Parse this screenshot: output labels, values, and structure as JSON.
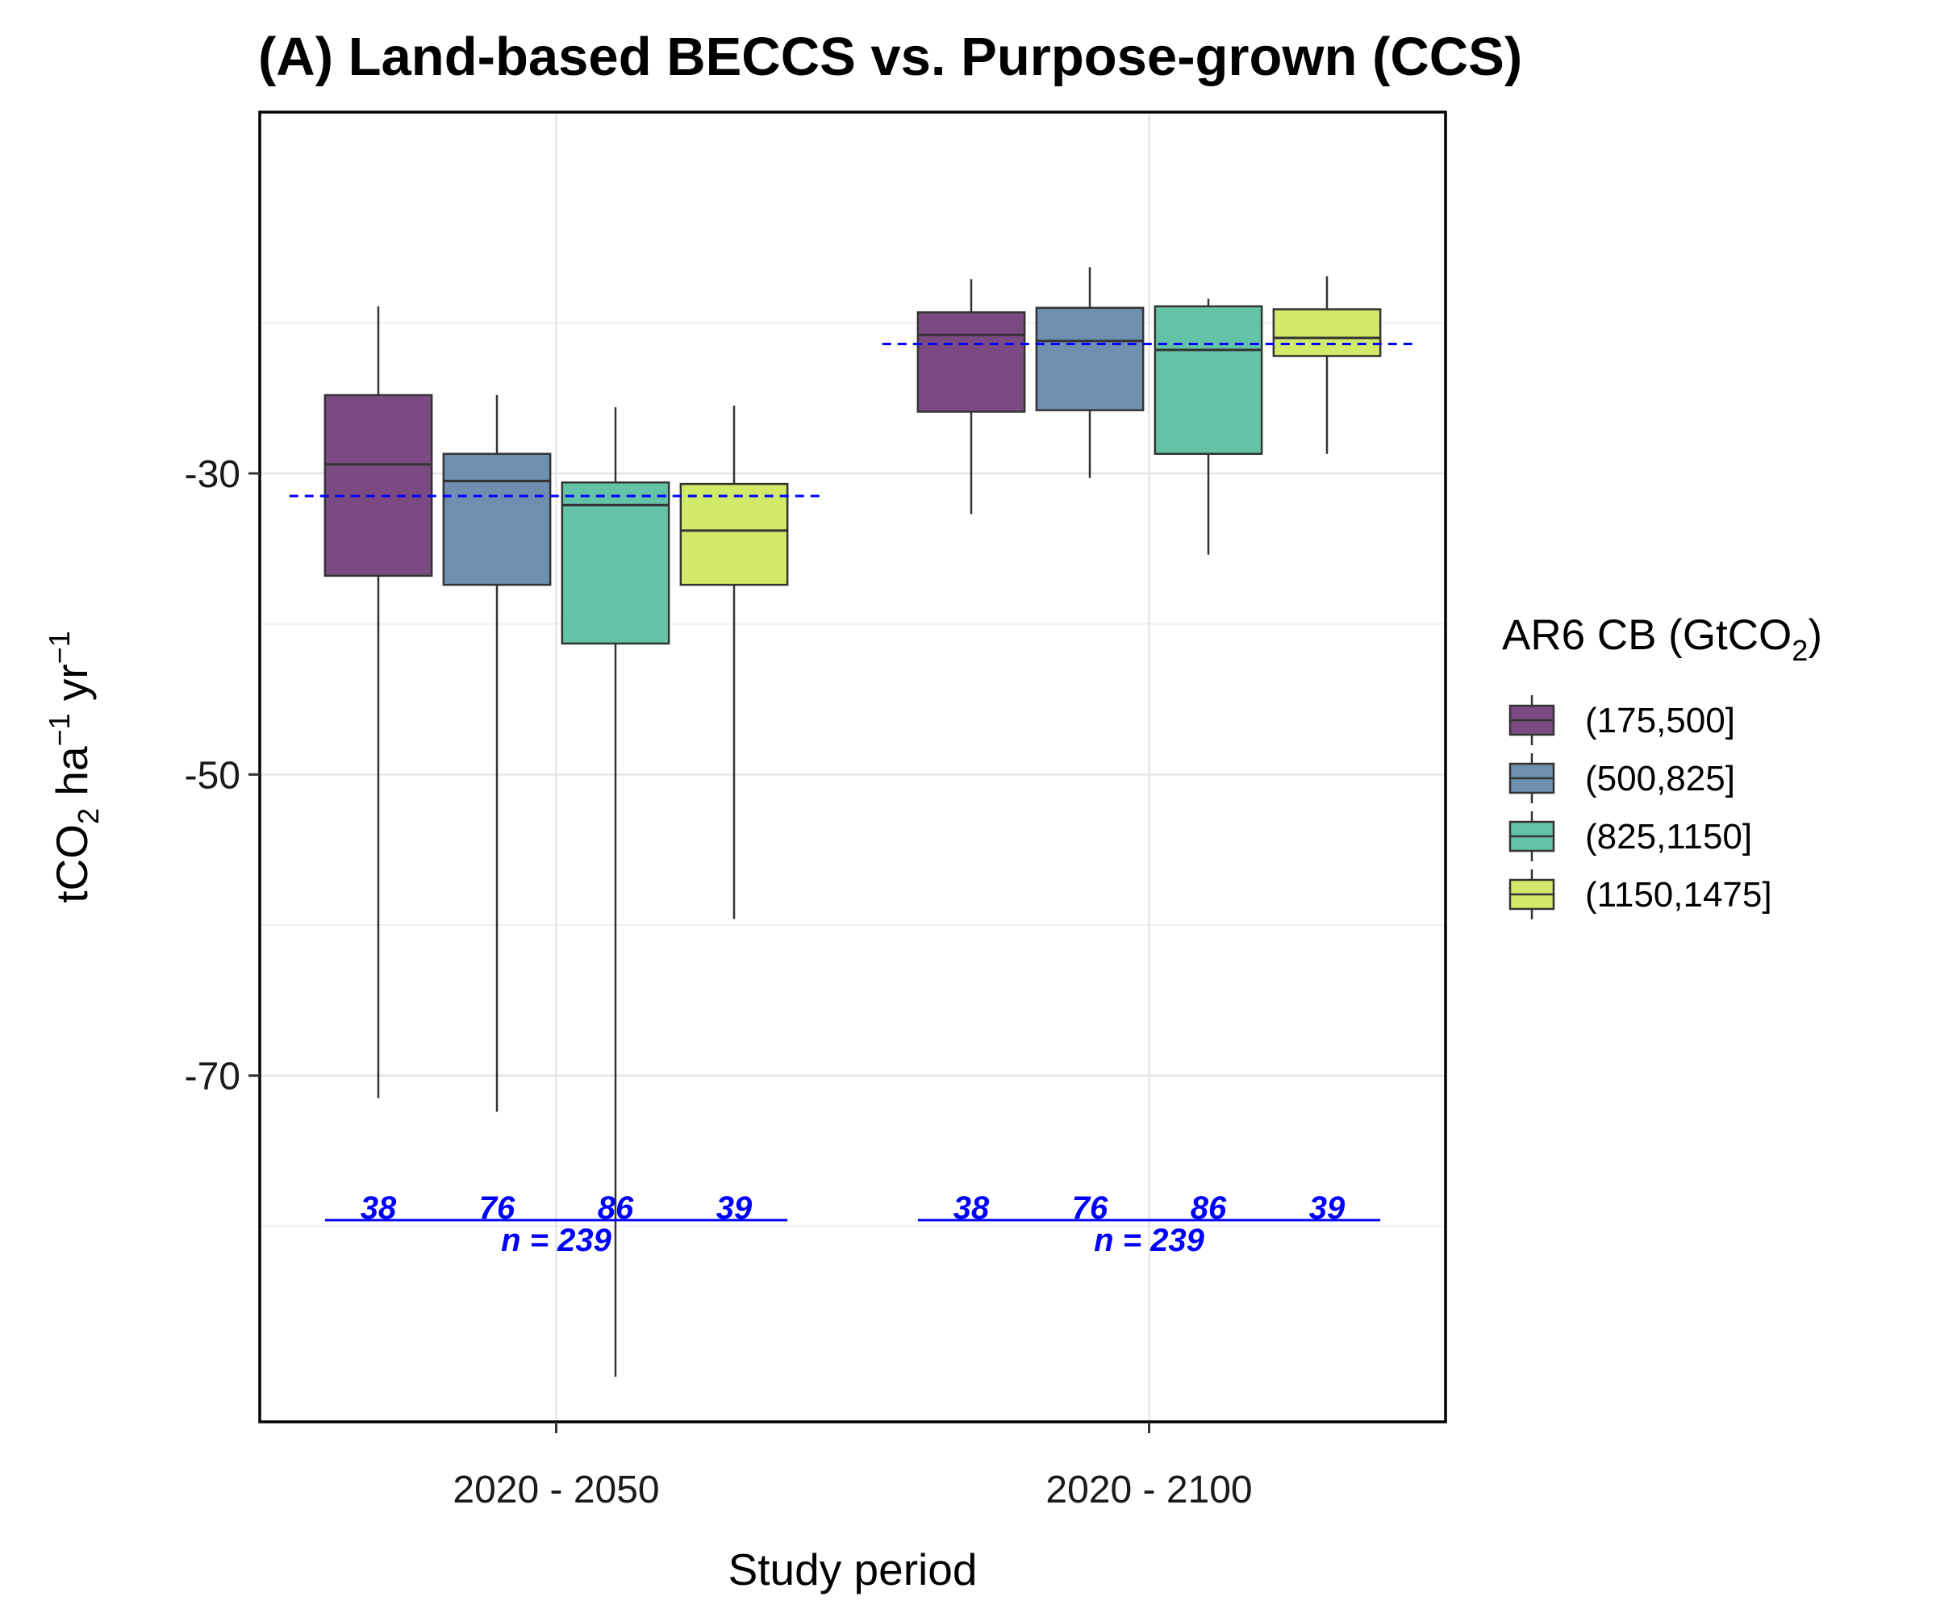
{
  "chart_data": {
    "type": "boxplot",
    "title": "(A) Land-based BECCS vs. Purpose-grown (CCS)",
    "xlabel": "Study period",
    "ylabel": {
      "base": "tCO",
      "sub": "2",
      "mid1": " ha",
      "sup1": "−1",
      "mid2": " yr",
      "sup2": "−1"
    },
    "ylim": [
      -93,
      -6
    ],
    "yticks": [
      -30,
      -50,
      -70
    ],
    "grid": true,
    "categories": [
      "2020 - 2050",
      "2020 - 2100"
    ],
    "legend": {
      "title": {
        "base": "AR6 CB (GtCO",
        "sub": "2",
        "end": ")"
      },
      "position": "right",
      "items": [
        {
          "label": "(175,500]",
          "color": "#7b4a82"
        },
        {
          "label": "(500,825]",
          "color": "#6e8fb0"
        },
        {
          "label": "(825,1150]",
          "color": "#64c2a6"
        },
        {
          "label": "(1150,1475]",
          "color": "#d2e96a"
        }
      ]
    },
    "groups": [
      {
        "category": "2020 - 2050",
        "mean": -31.5,
        "n_label": "n = 239",
        "boxes": [
          {
            "series": "(175,500]",
            "whisker_low": -71.5,
            "q1": -36.8,
            "median": -29.4,
            "q3": -24.8,
            "whisker_high": -18.9,
            "count": "38"
          },
          {
            "series": "(500,825]",
            "whisker_low": -72.4,
            "q1": -37.4,
            "median": -30.5,
            "q3": -28.7,
            "whisker_high": -24.8,
            "count": "76"
          },
          {
            "series": "(825,1150]",
            "whisker_low": -90.0,
            "q1": -41.3,
            "median": -32.1,
            "q3": -30.6,
            "whisker_high": -25.6,
            "count": "86"
          },
          {
            "series": "(1150,1475]",
            "whisker_low": -59.6,
            "q1": -37.4,
            "median": -33.8,
            "q3": -30.7,
            "whisker_high": -25.5,
            "count": "39"
          }
        ]
      },
      {
        "category": "2020 - 2100",
        "mean": -21.4,
        "n_label": "n = 239",
        "boxes": [
          {
            "series": "(175,500]",
            "whisker_low": -32.7,
            "q1": -25.9,
            "median": -20.8,
            "q3": -19.3,
            "whisker_high": -17.1,
            "count": "38"
          },
          {
            "series": "(500,825]",
            "whisker_low": -30.3,
            "q1": -25.8,
            "median": -21.2,
            "q3": -19.0,
            "whisker_high": -16.3,
            "count": "76"
          },
          {
            "series": "(825,1150]",
            "whisker_low": -35.4,
            "q1": -28.7,
            "median": -21.8,
            "q3": -18.9,
            "whisker_high": -18.4,
            "count": "86"
          },
          {
            "series": "(1150,1475]",
            "whisker_low": -28.7,
            "q1": -22.2,
            "median": -21.0,
            "q3": -19.1,
            "whisker_high": -16.9,
            "count": "39"
          }
        ]
      }
    ]
  }
}
